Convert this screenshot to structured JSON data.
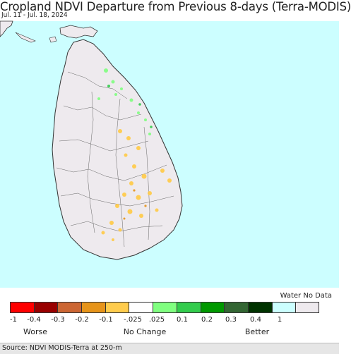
{
  "title": "Cropland NDVI Departure from Previous 8-days (Terra-MODIS)",
  "date_range": "Jul. 11 - Jul. 18, 2024",
  "legend": {
    "water_nodata_label": "Water No Data",
    "colors": [
      "#ff0000",
      "#990000",
      "#cc6633",
      "#e6941a",
      "#ffcc4d",
      "#ffffff",
      "#80ff80",
      "#33cc4d",
      "#009900",
      "#336633",
      "#003300",
      "#ccffff",
      "#eeeaee"
    ],
    "tick_labels": [
      "-1",
      "-0.4",
      "-0.3",
      "-0.2",
      "-0.1",
      "-.025",
      ".025",
      "0.1",
      "0.2",
      "0.3",
      "0.4",
      "1"
    ],
    "worse_label": "Worse",
    "no_change_label": "No Change",
    "better_label": "Better"
  },
  "source": "Source: NDVI MODIS-Terra at 250-m",
  "map": {
    "water_color": "#ccfeff",
    "land_color": "#eeeaee",
    "boundary_color": "#333333"
  }
}
